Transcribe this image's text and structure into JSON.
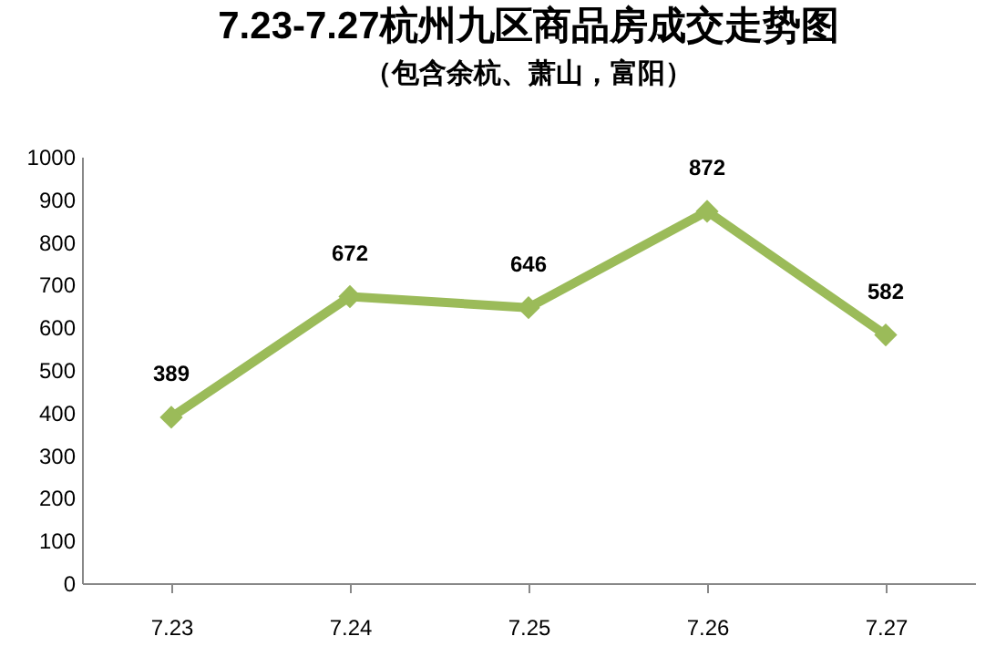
{
  "chart_data": {
    "type": "line",
    "title": "7.23-7.27杭州九区商品房成交走势图",
    "subtitle": "（包含余杭、萧山，富阳）",
    "categories": [
      "7.23",
      "7.24",
      "7.25",
      "7.26",
      "7.27"
    ],
    "series": [
      {
        "color": "#9bbb59",
        "values": [
          389,
          672,
          646,
          872,
          582
        ]
      }
    ],
    "ylim": [
      0,
      1000
    ],
    "yticks": [
      0,
      100,
      200,
      300,
      400,
      500,
      600,
      700,
      800,
      900,
      1000
    ],
    "grid": false,
    "legend": false,
    "marker": "diamond",
    "line_style": "solid",
    "data_labels": true
  }
}
